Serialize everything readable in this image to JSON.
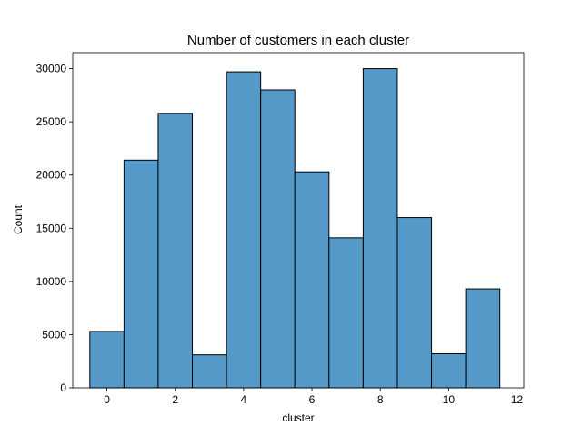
{
  "chart_data": {
    "type": "bar",
    "title": "Number of customers in each cluster",
    "xlabel": "cluster",
    "ylabel": "Count",
    "categories": [
      0,
      1,
      2,
      3,
      4,
      5,
      6,
      7,
      8,
      9,
      10,
      11
    ],
    "values": [
      5300,
      21400,
      25800,
      3100,
      29700,
      28000,
      20300,
      14100,
      30000,
      16000,
      3200,
      9300
    ],
    "xlim": [
      -1.0,
      12.2
    ],
    "ylim": [
      0,
      31500
    ],
    "xticks": [
      0,
      2,
      4,
      6,
      8,
      10,
      12
    ],
    "yticks": [
      0,
      5000,
      10000,
      15000,
      20000,
      25000,
      30000
    ],
    "bar_color": "#5499c7",
    "edge_color": "#000000",
    "grid": false,
    "legend": "none"
  }
}
